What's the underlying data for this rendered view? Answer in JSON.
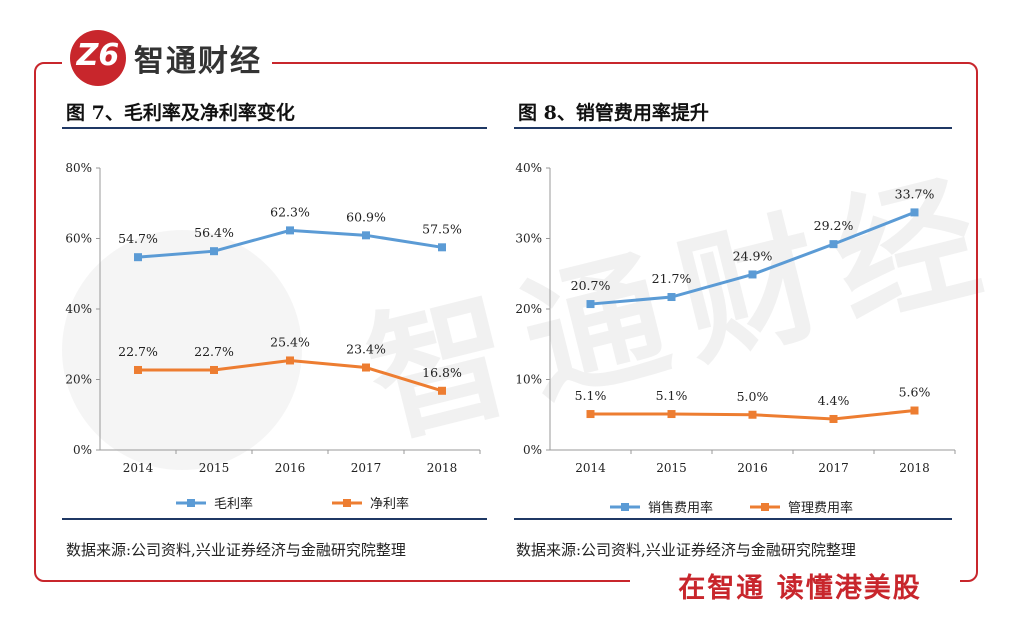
{
  "brand": {
    "logo_mark": "Z6",
    "name": "智通财经",
    "slogan": "在智通 读懂港美股",
    "watermark": "智通财经",
    "accent": "#c8262c"
  },
  "charts": [
    {
      "title": "图 7、毛利率及净利率变化",
      "source": "数据来源:公司资料,兴业证券经济与金融研究院整理"
    },
    {
      "title": "图 8、销管费用率提升",
      "source": "数据来源:公司资料,兴业证券经济与金融研究院整理"
    }
  ],
  "chart_data": [
    {
      "type": "line",
      "title": "图 7、毛利率及净利率变化",
      "x": [
        "2014",
        "2015",
        "2016",
        "2017",
        "2018"
      ],
      "yticks": [
        "0%",
        "20%",
        "40%",
        "60%",
        "80%"
      ],
      "ylim": [
        0,
        80
      ],
      "series": [
        {
          "name": "毛利率",
          "color": "#5b9bd5",
          "values": [
            54.7,
            56.4,
            62.3,
            60.9,
            57.5
          ],
          "labels": [
            "54.7%",
            "56.4%",
            "62.3%",
            "60.9%",
            "57.5%"
          ]
        },
        {
          "name": "净利率",
          "color": "#ed7d31",
          "values": [
            22.7,
            22.7,
            25.4,
            23.4,
            16.8
          ],
          "labels": [
            "22.7%",
            "22.7%",
            "25.4%",
            "23.4%",
            "16.8%"
          ]
        }
      ],
      "legend": "bottom"
    },
    {
      "type": "line",
      "title": "图 8、销管费用率提升",
      "x": [
        "2014",
        "2015",
        "2016",
        "2017",
        "2018"
      ],
      "yticks": [
        "0%",
        "10%",
        "20%",
        "30%",
        "40%"
      ],
      "ylim": [
        0,
        40
      ],
      "series": [
        {
          "name": "销售费用率",
          "color": "#5b9bd5",
          "values": [
            20.7,
            21.7,
            24.9,
            29.2,
            33.7
          ],
          "labels": [
            "20.7%",
            "21.7%",
            "24.9%",
            "29.2%",
            "33.7%"
          ]
        },
        {
          "name": "管理费用率",
          "color": "#ed7d31",
          "values": [
            5.1,
            5.1,
            5.0,
            4.4,
            5.6
          ],
          "labels": [
            "5.1%",
            "5.1%",
            "5.0%",
            "4.4%",
            "5.6%"
          ]
        }
      ],
      "legend": "bottom"
    }
  ]
}
